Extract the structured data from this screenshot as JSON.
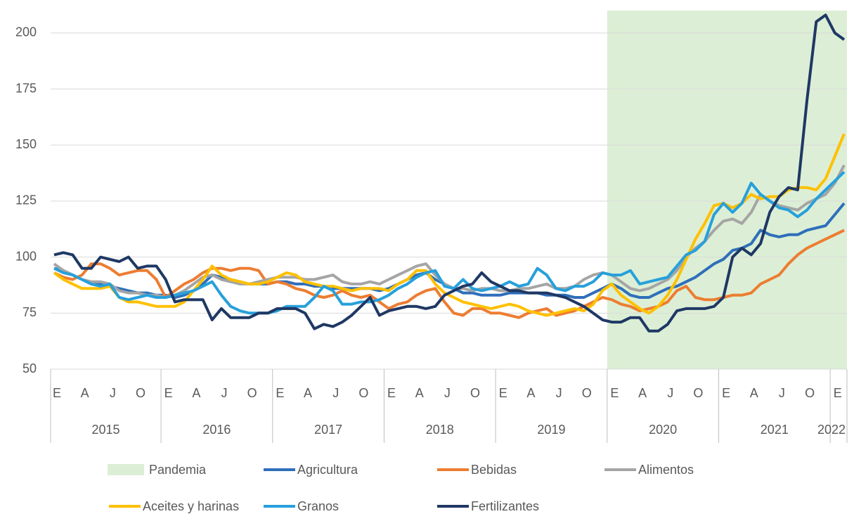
{
  "chart_data": {
    "type": "line",
    "categories": [
      "E",
      null,
      null,
      "A",
      null,
      null,
      "J",
      null,
      null,
      "O",
      null,
      null,
      "E",
      null,
      null,
      "A",
      null,
      null,
      "J",
      null,
      null,
      "O",
      null,
      null,
      "E",
      null,
      null,
      "A",
      null,
      null,
      "J",
      null,
      null,
      "O",
      null,
      null,
      "E",
      null,
      null,
      "A",
      null,
      null,
      "J",
      null,
      null,
      "O",
      null,
      null,
      "E",
      null,
      null,
      "A",
      null,
      null,
      "J",
      null,
      null,
      "O",
      null,
      null,
      "E",
      null,
      null,
      "A",
      null,
      null,
      "J",
      null,
      null,
      "O",
      null,
      null,
      "E",
      null,
      null,
      "A",
      null,
      null,
      "J",
      null,
      null,
      "O",
      null,
      null,
      "E",
      null
    ],
    "years": [
      "2015",
      "2016",
      "2017",
      "2018",
      "2019",
      "2020",
      "2021",
      "2022"
    ],
    "span": {
      "name": "Pandemia",
      "color": "#dcefd6",
      "from": "2020"
    },
    "ylim": [
      50,
      210
    ],
    "yticks": [
      50,
      75,
      100,
      125,
      150,
      175,
      200
    ],
    "grid": true,
    "series": [
      {
        "name": "Agricultura",
        "color": "#2e6fba",
        "values": [
          95,
          94,
          92,
          90,
          88,
          88,
          87,
          86,
          85,
          84,
          84,
          83,
          83,
          82,
          83,
          85,
          88,
          92,
          91,
          90,
          89,
          88,
          88,
          88,
          89,
          89,
          88,
          88,
          87,
          87,
          86,
          86,
          86,
          86,
          86,
          85,
          86,
          88,
          90,
          92,
          93,
          90,
          88,
          86,
          84,
          84,
          83,
          83,
          83,
          84,
          84,
          84,
          84,
          83,
          83,
          83,
          82,
          82,
          84,
          86,
          88,
          86,
          83,
          82,
          82,
          84,
          86,
          87,
          89,
          91,
          94,
          97,
          99,
          103,
          104,
          106,
          112,
          110,
          109,
          110,
          110,
          112,
          113,
          114,
          119,
          124
        ]
      },
      {
        "name": "Bebidas",
        "color": "#ed7d31",
        "values": [
          93,
          91,
          90,
          92,
          97,
          97,
          95,
          92,
          93,
          94,
          94,
          90,
          82,
          85,
          88,
          90,
          93,
          95,
          95,
          94,
          95,
          95,
          94,
          88,
          89,
          88,
          86,
          85,
          83,
          82,
          83,
          85,
          83,
          82,
          83,
          80,
          77,
          79,
          80,
          83,
          85,
          86,
          80,
          75,
          74,
          77,
          77,
          75,
          75,
          74,
          73,
          75,
          76,
          77,
          74,
          75,
          76,
          78,
          80,
          82,
          81,
          79,
          78,
          76,
          77,
          78,
          80,
          85,
          87,
          82,
          81,
          81,
          82,
          83,
          83,
          84,
          88,
          90,
          92,
          97,
          101,
          104,
          106,
          108,
          110,
          112
        ]
      },
      {
        "name": "Alimentos",
        "color": "#a5a5a5",
        "values": [
          97,
          94,
          92,
          90,
          89,
          89,
          88,
          85,
          84,
          84,
          83,
          83,
          82,
          83,
          85,
          88,
          91,
          92,
          90,
          89,
          88,
          88,
          89,
          90,
          91,
          91,
          91,
          90,
          90,
          91,
          92,
          89,
          88,
          88,
          89,
          88,
          90,
          92,
          94,
          96,
          97,
          92,
          88,
          86,
          86,
          85,
          86,
          86,
          85,
          85,
          86,
          86,
          87,
          88,
          86,
          86,
          87,
          90,
          92,
          93,
          92,
          89,
          86,
          85,
          86,
          88,
          90,
          94,
          100,
          104,
          107,
          112,
          116,
          117,
          115,
          120,
          128,
          125,
          123,
          122,
          121,
          124,
          126,
          128,
          133,
          141
        ]
      },
      {
        "name": "Aceites y harinas",
        "color": "#ffc000",
        "values": [
          93,
          90,
          88,
          86,
          86,
          86,
          87,
          82,
          80,
          80,
          79,
          78,
          78,
          78,
          80,
          85,
          90,
          96,
          92,
          90,
          89,
          88,
          88,
          89,
          91,
          93,
          92,
          89,
          88,
          87,
          87,
          86,
          85,
          86,
          86,
          86,
          85,
          88,
          90,
          94,
          94,
          88,
          84,
          82,
          80,
          79,
          78,
          77,
          78,
          79,
          78,
          76,
          75,
          74,
          75,
          76,
          77,
          76,
          79,
          85,
          88,
          83,
          80,
          77,
          75,
          78,
          83,
          90,
          99,
          108,
          115,
          123,
          124,
          122,
          124,
          128,
          126,
          127,
          127,
          130,
          131,
          131,
          130,
          135,
          145,
          155
        ]
      },
      {
        "name": "Granos",
        "color": "#27a0db",
        "values": [
          95,
          93,
          92,
          90,
          88,
          87,
          88,
          82,
          81,
          82,
          83,
          82,
          82,
          83,
          84,
          85,
          87,
          89,
          83,
          78,
          76,
          75,
          75,
          75,
          76,
          78,
          78,
          78,
          82,
          87,
          85,
          79,
          79,
          80,
          80,
          81,
          83,
          86,
          88,
          91,
          93,
          94,
          87,
          86,
          90,
          86,
          85,
          86,
          87,
          89,
          87,
          88,
          95,
          92,
          86,
          85,
          87,
          87,
          89,
          93,
          92,
          92,
          94,
          88,
          89,
          90,
          91,
          96,
          101,
          103,
          107,
          119,
          124,
          120,
          124,
          133,
          128,
          125,
          122,
          121,
          118,
          121,
          126,
          130,
          134,
          138
        ]
      },
      {
        "name": "Fertilizantes",
        "color": "#1f3864",
        "values": [
          101,
          102,
          101,
          95,
          95,
          100,
          99,
          98,
          100,
          95,
          96,
          96,
          90,
          80,
          81,
          81,
          81,
          72,
          77,
          73,
          73,
          73,
          75,
          75,
          77,
          77,
          77,
          75,
          68,
          70,
          69,
          71,
          74,
          78,
          82,
          74,
          76,
          77,
          78,
          78,
          77,
          78,
          83,
          85,
          87,
          88,
          93,
          89,
          87,
          85,
          85,
          84,
          84,
          84,
          83,
          82,
          80,
          78,
          75,
          72,
          71,
          71,
          73,
          73,
          67,
          67,
          70,
          76,
          77,
          77,
          77,
          78,
          82,
          100,
          104,
          101,
          106,
          120,
          127,
          131,
          130,
          170,
          205,
          208,
          200,
          197
        ]
      }
    ]
  }
}
